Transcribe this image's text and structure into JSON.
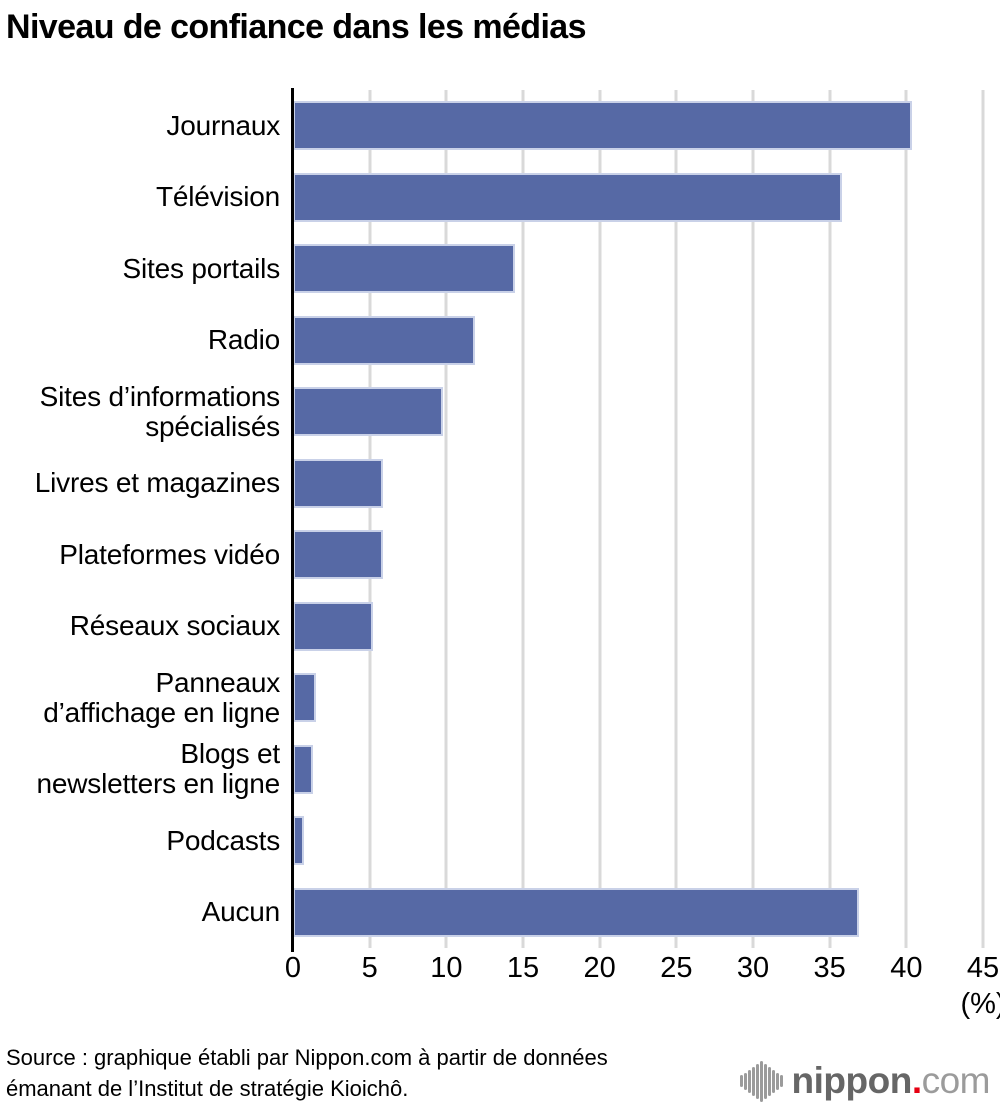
{
  "title": "Niveau de confiance dans les médias",
  "chart_data": {
    "type": "bar",
    "orientation": "horizontal",
    "title": "Niveau de confiance dans les médias",
    "xlabel": "(%)",
    "ylabel": "",
    "xlim": [
      0,
      45
    ],
    "x_ticks": [
      0,
      5,
      10,
      15,
      20,
      25,
      30,
      35,
      40,
      45
    ],
    "grid": true,
    "legend": "none",
    "categories": [
      "Journaux",
      "Télévision",
      "Sites portails",
      "Radio",
      "Sites d’informations spécialisés",
      "Livres et magazines",
      "Plateformes vidéo",
      "Réseaux sociaux",
      "Panneaux d’affichage en ligne",
      "Blogs et newsletters en ligne",
      "Podcasts",
      "Aucun"
    ],
    "category_display_lines": [
      [
        "Journaux"
      ],
      [
        "Télévision"
      ],
      [
        "Sites portails"
      ],
      [
        "Radio"
      ],
      [
        "Sites d’informations",
        "spécialisés"
      ],
      [
        "Livres et magazines"
      ],
      [
        "Plateformes vidéo"
      ],
      [
        "Réseaux sociaux"
      ],
      [
        "Panneaux",
        "d’affichage en ligne"
      ],
      [
        "Blogs et",
        "newsletters en ligne"
      ],
      [
        "Podcasts"
      ],
      [
        "Aucun"
      ]
    ],
    "values": [
      40.4,
      35.8,
      14.5,
      11.9,
      9.8,
      5.9,
      5.9,
      5.2,
      1.5,
      1.3,
      0.7,
      36.9
    ],
    "bar_color": "#5669a5",
    "bar_edge_color": "#c9d1e8",
    "grid_color": "#d9d9d9",
    "axis_color": "#000000"
  },
  "axis": {
    "percent_label": "(%)"
  },
  "source": {
    "line1": "Source : graphique établi par Nippon.com à partir de données",
    "line2": "émanant de l’Institut de stratégie Kioichô."
  },
  "logo": {
    "brand": "nippon",
    "dot": ".",
    "tld": "com",
    "dot_color": "#e60012",
    "icon_color": "#9b9b9b",
    "icon_bar_heights": [
      12,
      17,
      23,
      29,
      35,
      41,
      35,
      29,
      23,
      17,
      12
    ]
  }
}
